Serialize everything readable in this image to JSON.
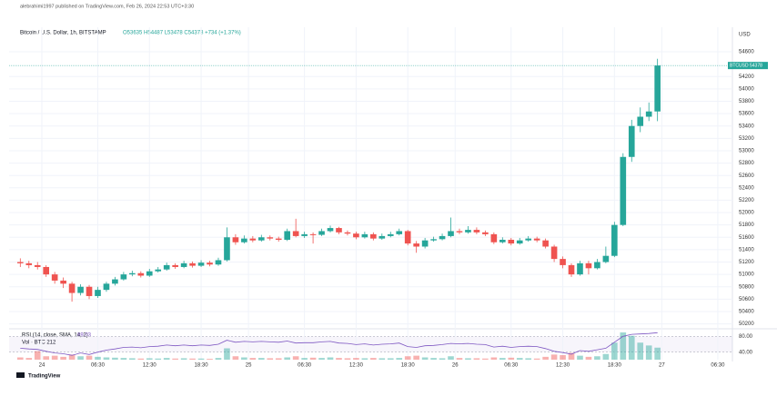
{
  "header": {
    "published": "alebrahimi1997 published on TradingView.com, Feb 26, 2024 22:53 UTC+3:30",
    "symbol": "Bitcoin / U.S. Dollar, 1h, BITSTAMP",
    "ohlc": "O53635 H54487 L53478 C54378 +734 (+1.37%)",
    "currency": "USD",
    "footer": "TradingView"
  },
  "chart_data": {
    "type": "candlestick",
    "up_color": "#26a69a",
    "down_color": "#ef5350",
    "open": [
      51200,
      51180,
      51150,
      51120,
      51000,
      50900,
      50850,
      50700,
      50800,
      50650,
      50750,
      50850,
      50920,
      51000,
      51020,
      50980,
      51050,
      51080,
      51150,
      51120,
      51180,
      51140,
      51190,
      51160,
      51230,
      51600,
      51520,
      51580,
      51550,
      51600,
      51580,
      51560,
      51700,
      51620,
      51650,
      51640,
      51700,
      51750,
      51680,
      51660,
      51600,
      51650,
      51580,
      51620,
      51650,
      51700,
      51500,
      51450,
      51550,
      51570,
      51620,
      51700,
      51680,
      51720,
      51680,
      51650,
      51520,
      51560,
      51500,
      51550,
      51580,
      51550,
      51450,
      51250,
      51150,
      51000,
      51180,
      51100,
      51200,
      51300,
      51800,
      52900,
      53400,
      53550,
      53635
    ],
    "high": [
      51260,
      51220,
      51200,
      51150,
      51040,
      50950,
      50880,
      50840,
      50830,
      50800,
      50880,
      50960,
      51040,
      51060,
      51050,
      51090,
      51120,
      51190,
      51180,
      51220,
      51210,
      51230,
      51220,
      51270,
      51760,
      51650,
      51630,
      51620,
      51640,
      51630,
      51610,
      51740,
      51900,
      51690,
      51680,
      51740,
      51790,
      51770,
      51710,
      51690,
      51690,
      51680,
      51660,
      51690,
      51740,
      51720,
      51540,
      51590,
      51610,
      51660,
      51920,
      51740,
      51780,
      51760,
      51710,
      51680,
      51600,
      51590,
      51590,
      51620,
      51610,
      51580,
      51480,
      51290,
      51180,
      51220,
      51220,
      51250,
      51450,
      51850,
      52960,
      53500,
      53700,
      53780,
      54487
    ],
    "low": [
      51120,
      51100,
      51080,
      50960,
      50850,
      50780,
      50560,
      50660,
      50600,
      50620,
      50720,
      50820,
      50900,
      50970,
      50950,
      50960,
      51030,
      51060,
      51090,
      51100,
      51110,
      51120,
      51130,
      51140,
      51210,
      51480,
      51500,
      51520,
      51530,
      51550,
      51530,
      51540,
      51600,
      51590,
      51500,
      51620,
      51680,
      51650,
      51630,
      51570,
      51580,
      51550,
      51560,
      51600,
      51630,
      51470,
      51350,
      51420,
      51530,
      51550,
      51600,
      51650,
      51660,
      51650,
      51620,
      51490,
      51500,
      51470,
      51480,
      51530,
      51520,
      51420,
      51200,
      51100,
      50960,
      50980,
      51000,
      51080,
      51180,
      51280,
      51780,
      52820,
      53300,
      53480,
      53478
    ],
    "close": [
      51180,
      51150,
      51120,
      51000,
      50900,
      50850,
      50700,
      50800,
      50650,
      50750,
      50850,
      50920,
      51000,
      51020,
      50980,
      51050,
      51080,
      51150,
      51120,
      51180,
      51140,
      51190,
      51160,
      51230,
      51600,
      51520,
      51580,
      51550,
      51600,
      51580,
      51560,
      51700,
      51620,
      51650,
      51640,
      51700,
      51750,
      51680,
      51660,
      51600,
      51650,
      51580,
      51620,
      51650,
      51700,
      51500,
      51450,
      51550,
      51570,
      51620,
      51700,
      51680,
      51720,
      51680,
      51650,
      51520,
      51560,
      51500,
      51550,
      51580,
      51550,
      51450,
      51250,
      51150,
      51000,
      51180,
      51100,
      51200,
      51300,
      51800,
      52900,
      53400,
      53550,
      53635,
      54378
    ],
    "volume": [
      40,
      30,
      150,
      60,
      70,
      50,
      90,
      60,
      70,
      50,
      40,
      35,
      30,
      25,
      20,
      25,
      20,
      30,
      20,
      25,
      20,
      20,
      15,
      30,
      200,
      60,
      40,
      30,
      30,
      25,
      25,
      40,
      60,
      30,
      35,
      30,
      40,
      30,
      25,
      30,
      25,
      30,
      25,
      25,
      30,
      60,
      70,
      40,
      30,
      25,
      60,
      30,
      25,
      25,
      20,
      40,
      30,
      35,
      30,
      25,
      20,
      50,
      90,
      80,
      120,
      70,
      50,
      60,
      100,
      300,
      480,
      420,
      300,
      250,
      212
    ],
    "rsi": [
      50,
      48,
      47,
      42,
      38,
      36,
      32,
      38,
      34,
      40,
      45,
      48,
      52,
      53,
      51,
      54,
      55,
      58,
      56,
      58,
      56,
      58,
      57,
      60,
      70,
      65,
      67,
      66,
      67,
      66,
      65,
      68,
      63,
      64,
      64,
      66,
      67,
      63,
      62,
      59,
      61,
      58,
      60,
      61,
      63,
      54,
      52,
      56,
      57,
      59,
      62,
      61,
      62,
      60,
      59,
      53,
      55,
      52,
      54,
      55,
      54,
      49,
      42,
      39,
      35,
      44,
      42,
      46,
      50,
      65,
      80,
      85,
      86,
      87,
      89.03
    ],
    "xlim": [
      -1.3,
      82.7
    ],
    "ylim": [
      50150,
      54850
    ],
    "yticks": [
      50200,
      50400,
      50600,
      50800,
      51000,
      51200,
      51400,
      51600,
      51800,
      52000,
      52200,
      52400,
      52600,
      52800,
      53000,
      53200,
      53400,
      53600,
      53800,
      54000,
      54200,
      54600
    ],
    "rsi_lim": [
      21,
      99
    ],
    "rsi_ticks": [
      {
        "value": 80,
        "label": "80.00"
      },
      {
        "value": 40,
        "label": "40.00"
      }
    ],
    "xticks": [
      {
        "value": 2.5,
        "label": "24"
      },
      {
        "value": 9,
        "label": "06:30"
      },
      {
        "value": 15,
        "label": "12:30"
      },
      {
        "value": 21,
        "label": "18:30"
      },
      {
        "value": 26.5,
        "label": "25"
      },
      {
        "value": 33,
        "label": "06:30"
      },
      {
        "value": 39,
        "label": "12:30"
      },
      {
        "value": 45,
        "label": "18:30"
      },
      {
        "value": 50.5,
        "label": "26"
      },
      {
        "value": 57,
        "label": "06:30"
      },
      {
        "value": 63,
        "label": "12:30"
      },
      {
        "value": 69,
        "label": "18:30"
      },
      {
        "value": 74.5,
        "label": "27"
      },
      {
        "value": 81,
        "label": "06:30"
      }
    ],
    "last_price_symbol": "BTCUSD",
    "last_price": 54378,
    "rsi_title": "RSI (14, close, SMA, 14, 2)",
    "rsi_value_label": "89.03",
    "volume_title": "Vol · BTC 212"
  }
}
